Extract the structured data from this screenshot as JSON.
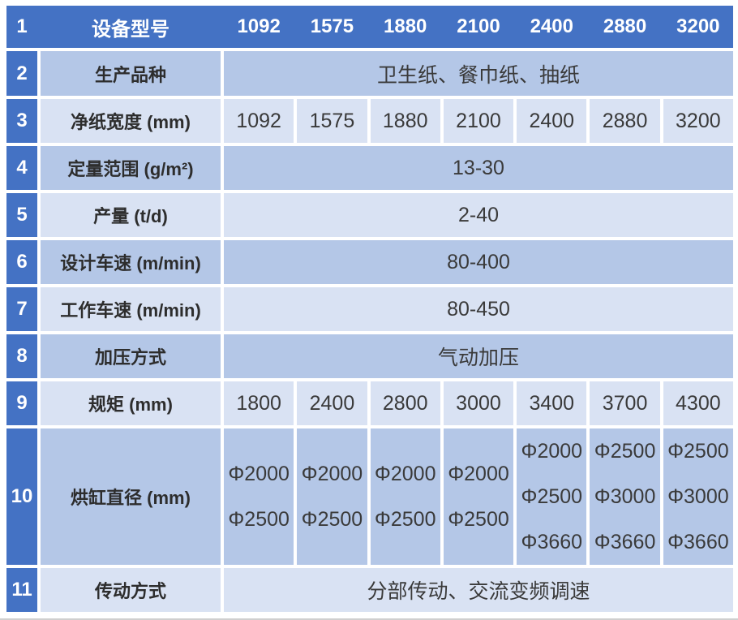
{
  "colors": {
    "header_blue": "#4472C4",
    "band_medium": "#B4C7E7",
    "band_light": "#D9E2F3",
    "gap_white": "#FFFFFF",
    "edge_line": "#CFCFCF",
    "text_dark": "#3A3A3A",
    "text_white": "#FFFFFF"
  },
  "table": {
    "header_row": {
      "no": "1",
      "label": "设备型号",
      "models": [
        "1092",
        "1575",
        "1880",
        "2100",
        "2400",
        "2880",
        "3200"
      ]
    },
    "rows": [
      {
        "no": "2",
        "label": "生产品种",
        "merged": "卫生纸、餐巾纸、抽纸"
      },
      {
        "no": "3",
        "label": "净纸宽度 (mm)",
        "cells": [
          "1092",
          "1575",
          "1880",
          "2100",
          "2400",
          "2880",
          "3200"
        ]
      },
      {
        "no": "4",
        "label": "定量范围 (g/m²)",
        "merged": "13-30"
      },
      {
        "no": "5",
        "label": "产量 (t/d)",
        "merged": "2-40"
      },
      {
        "no": "6",
        "label": "设计车速 (m/min)",
        "merged": "80-400"
      },
      {
        "no": "7",
        "label": "工作车速 (m/min)",
        "merged": "80-450"
      },
      {
        "no": "8",
        "label": "加压方式",
        "merged": "气动加压"
      },
      {
        "no": "9",
        "label": "规矩 (mm)",
        "cells": [
          "1800",
          "2400",
          "2800",
          "3000",
          "3400",
          "3700",
          "4300"
        ]
      },
      {
        "no": "10",
        "label": "烘缸直径 (mm)",
        "cells_multiline": [
          [
            "Φ2000",
            "Φ2500"
          ],
          [
            "Φ2000",
            "Φ2500"
          ],
          [
            "Φ2000",
            "Φ2500"
          ],
          [
            "Φ2000",
            "Φ2500"
          ],
          [
            "Φ2000",
            "Φ2500",
            "Φ3660"
          ],
          [
            "Φ2500",
            "Φ3000",
            "Φ3660"
          ],
          [
            "Φ2500",
            "Φ3000",
            "Φ3660"
          ]
        ]
      },
      {
        "no": "11",
        "label": "传动方式",
        "merged": "分部传动、交流变频调速"
      }
    ]
  }
}
